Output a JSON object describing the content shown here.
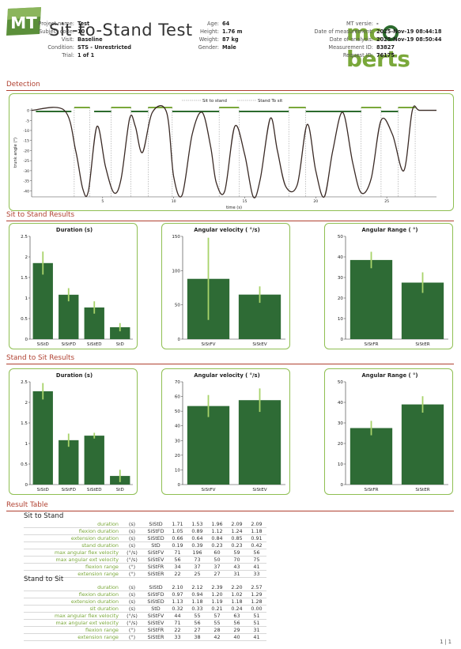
{
  "header": {
    "logo_text": "MT",
    "title": "Sit-to-Stand Test",
    "brand_name_a": "mc",
    "brand_name_b": "berts",
    "brand_colors": {
      "light": "#7aa83a",
      "dark": "#2c6b2e"
    },
    "col1": [
      {
        "label": "Project name:",
        "value": "Test"
      },
      {
        "label": "Subject code:",
        "value": "10"
      },
      {
        "label": "Visit:",
        "value": "Baseline"
      },
      {
        "label": "Condition:",
        "value": "STS - Unrestricted"
      },
      {
        "label": "Trial:",
        "value": "1 of 1"
      }
    ],
    "col2": [
      {
        "label": "Age:",
        "value": "64"
      },
      {
        "label": "Height:",
        "value": "1.76 m"
      },
      {
        "label": "Weight:",
        "value": "87 kg"
      },
      {
        "label": "Gender:",
        "value": "Male"
      }
    ],
    "col3": [
      {
        "label": "MT versie:",
        "value": "-"
      },
      {
        "label": "Date of measurement:",
        "value": "2025-Nov-19 08:44:18"
      },
      {
        "label": "Date of analysis:",
        "value": "2025-Nov-19 08:50:44"
      },
      {
        "label": "Measurement ID:",
        "value": "83827"
      },
      {
        "label": "Request ID:",
        "value": "76175"
      }
    ]
  },
  "sections": {
    "detection": "Detection",
    "sit_to_stand": "Sit to Stand Results",
    "stand_to_sit": "Stand to Sit Results",
    "result_table": "Result Table"
  },
  "chart_data": [
    {
      "id": "detection",
      "type": "line",
      "title": "",
      "xlabel": "time (s)",
      "ylabel": "trunk angle (°)",
      "xlim": [
        0,
        28.5
      ],
      "ylim": [
        -43,
        1
      ],
      "xticks": [
        5,
        10,
        15,
        20,
        25
      ],
      "yticks": [
        0,
        -5,
        -10,
        -15,
        -20,
        -25,
        -30,
        -35,
        -40
      ],
      "legend": [
        {
          "name": "Sit to stand",
          "color": "#7aa83a"
        },
        {
          "name": "Stand To sit",
          "color": "#2c6b2e"
        }
      ],
      "legend_position": "top",
      "series": [
        {
          "name": "trunk angle",
          "color": "#3a2a25",
          "x": [
            0,
            2.3,
            3.1,
            3.6,
            4.0,
            4.6,
            5.2,
            5.8,
            6.3,
            6.9,
            7.3,
            7.8,
            8.5,
            9.5,
            10.0,
            10.6,
            11.3,
            12.0,
            12.6,
            13.0,
            13.6,
            14.3,
            15.0,
            15.6,
            16.1,
            16.8,
            17.3,
            17.9,
            18.7,
            19.4,
            20.0,
            20.6,
            21.2,
            21.9,
            22.6,
            23.2,
            23.9,
            24.6,
            25.4,
            26.2,
            26.8,
            27.3,
            28.5
          ],
          "y": [
            0,
            0,
            -20,
            -39,
            -40,
            -8,
            -28,
            -41,
            -34,
            -4,
            -8,
            -21,
            -1,
            -1,
            -33,
            -42,
            -12,
            -1,
            -18,
            -36,
            -40,
            -8,
            -22,
            -43,
            -34,
            -4,
            -20,
            -38,
            -37,
            -7,
            -30,
            -43,
            -20,
            -1,
            -26,
            -41,
            -34,
            -5,
            -12,
            -30,
            0,
            0,
            0
          ]
        }
      ],
      "markers": {
        "sit_to_stand": [
          [
            3.0,
            4.1
          ],
          [
            5.6,
            7.0
          ],
          [
            8.2,
            9.9
          ],
          [
            13.2,
            14.6
          ],
          [
            18.1,
            19.3
          ],
          [
            23.2,
            24.6
          ],
          [
            25.8,
            27.0
          ]
        ],
        "stand_to_sit": [
          [
            0.3,
            2.8
          ],
          [
            4.4,
            5.6
          ],
          [
            7.0,
            8.2
          ],
          [
            9.9,
            13.2
          ],
          [
            14.6,
            18.1
          ],
          [
            19.3,
            23.2
          ],
          [
            24.6,
            25.8
          ]
        ]
      }
    },
    {
      "id": "sts_duration",
      "type": "bar",
      "title": "Duration (s)",
      "categories": [
        "SiStD",
        "SiStFD",
        "SiStED",
        "StD"
      ],
      "values": [
        1.85,
        1.08,
        0.77,
        0.29
      ],
      "errors": [
        0.28,
        0.16,
        0.15,
        0.1
      ],
      "ylim": [
        0,
        2.5
      ],
      "yticks": [
        0,
        0.5,
        1,
        1.5,
        2,
        2.5
      ]
    },
    {
      "id": "sts_velocity",
      "type": "bar",
      "title": "Angular velocity ( °/s)",
      "categories": [
        "SiStFV",
        "SiStEV"
      ],
      "values": [
        88,
        65
      ],
      "errors": [
        60,
        12
      ],
      "ylim": [
        0,
        150
      ],
      "yticks": [
        0,
        50,
        100,
        150
      ]
    },
    {
      "id": "sts_range",
      "type": "bar",
      "title": "Angular Range ( °)",
      "categories": [
        "SiStFR",
        "SiStER"
      ],
      "values": [
        38.5,
        27.5
      ],
      "errors": [
        4,
        5
      ],
      "ylim": [
        0,
        50
      ],
      "yticks": [
        0,
        10,
        20,
        30,
        40,
        50
      ]
    },
    {
      "id": "st_duration",
      "type": "bar",
      "title": "Duration (s)",
      "categories": [
        "SiStD",
        "SiStFD",
        "SiStED",
        "StD"
      ],
      "values": [
        2.27,
        1.08,
        1.19,
        0.21
      ],
      "errors": [
        0.2,
        0.16,
        0.07,
        0.15
      ],
      "ylim": [
        0,
        2.5
      ],
      "yticks": [
        0,
        0.5,
        1,
        1.5,
        2,
        2.5
      ]
    },
    {
      "id": "st_velocity",
      "type": "bar",
      "title": "Angular velocity ( °/s)",
      "categories": [
        "SiStFV",
        "SiStEV"
      ],
      "values": [
        53.5,
        57.5
      ],
      "errors": [
        7.5,
        8
      ],
      "ylim": [
        0,
        70
      ],
      "yticks": [
        0,
        10,
        20,
        30,
        40,
        50,
        60,
        70
      ]
    },
    {
      "id": "st_range",
      "type": "bar",
      "title": "Angular Range ( °)",
      "categories": [
        "SiStFR",
        "SiStER"
      ],
      "values": [
        27.5,
        39
      ],
      "errors": [
        3.5,
        4
      ],
      "ylim": [
        0,
        50
      ],
      "yticks": [
        0,
        10,
        20,
        30,
        40,
        50
      ]
    }
  ],
  "result_table": {
    "groups": [
      {
        "name": "Sit to Stand",
        "rows": [
          {
            "label": "duration",
            "unit": "(s)",
            "code": "SiStD",
            "values": [
              "1.71",
              "1.53",
              "1.96",
              "2.09",
              "2.09"
            ]
          },
          {
            "label": "flexion duration",
            "unit": "(s)",
            "code": "SiStFD",
            "values": [
              "1.05",
              "0.89",
              "1.12",
              "1.24",
              "1.18"
            ]
          },
          {
            "label": "extension duration",
            "unit": "(s)",
            "code": "SiStED",
            "values": [
              "0.66",
              "0.64",
              "0.84",
              "0.85",
              "0.91"
            ]
          },
          {
            "label": "stand duration",
            "unit": "(s)",
            "code": "StD",
            "values": [
              "0.19",
              "0.39",
              "0.23",
              "0.23",
              "0.42"
            ]
          },
          {
            "label": "max angular flex velocity",
            "unit": "(°/s)",
            "code": "SiStFV",
            "values": [
              "71",
              "196",
              "60",
              "59",
              "56"
            ]
          },
          {
            "label": "max angular ext velocity",
            "unit": "(°/s)",
            "code": "SiStEV",
            "values": [
              "56",
              "73",
              "50",
              "70",
              "75"
            ]
          },
          {
            "label": "flexion range",
            "unit": "(°)",
            "code": "SiStFR",
            "values": [
              "34",
              "37",
              "37",
              "43",
              "41"
            ]
          },
          {
            "label": "extension range",
            "unit": "(°)",
            "code": "SiStER",
            "values": [
              "22",
              "25",
              "27",
              "31",
              "33"
            ]
          }
        ]
      },
      {
        "name": "Stand to Sit",
        "rows": [
          {
            "label": "duration",
            "unit": "(s)",
            "code": "SiStD",
            "values": [
              "2.10",
              "2.12",
              "2.39",
              "2.20",
              "2.57"
            ]
          },
          {
            "label": "flexion duration",
            "unit": "(s)",
            "code": "SiStFD",
            "values": [
              "0.97",
              "0.94",
              "1.20",
              "1.02",
              "1.29"
            ]
          },
          {
            "label": "extension duration",
            "unit": "(s)",
            "code": "SiStED",
            "values": [
              "1.13",
              "1.18",
              "1.19",
              "1.18",
              "1.28"
            ]
          },
          {
            "label": "sit duration",
            "unit": "(s)",
            "code": "StD",
            "values": [
              "0.32",
              "0.33",
              "0.21",
              "0.24",
              "0.00"
            ]
          },
          {
            "label": "max angular flex velocity",
            "unit": "(°/s)",
            "code": "SiStFV",
            "values": [
              "44",
              "55",
              "57",
              "63",
              "51"
            ]
          },
          {
            "label": "max angular ext velocity",
            "unit": "(°/s)",
            "code": "SiStEV",
            "values": [
              "71",
              "56",
              "55",
              "56",
              "51"
            ]
          },
          {
            "label": "flexion range",
            "unit": "(°)",
            "code": "SiStFR",
            "values": [
              "22",
              "27",
              "28",
              "29",
              "31"
            ]
          },
          {
            "label": "extension range",
            "unit": "(°)",
            "code": "SiStER",
            "values": [
              "33",
              "38",
              "42",
              "40",
              "41"
            ]
          }
        ]
      }
    ]
  },
  "footer": {
    "page": "1 | 1"
  },
  "colors": {
    "bar": "#2e6b35",
    "error": "#a8d36a",
    "panel_border": "#8fbf52",
    "section": "#b04030"
  }
}
